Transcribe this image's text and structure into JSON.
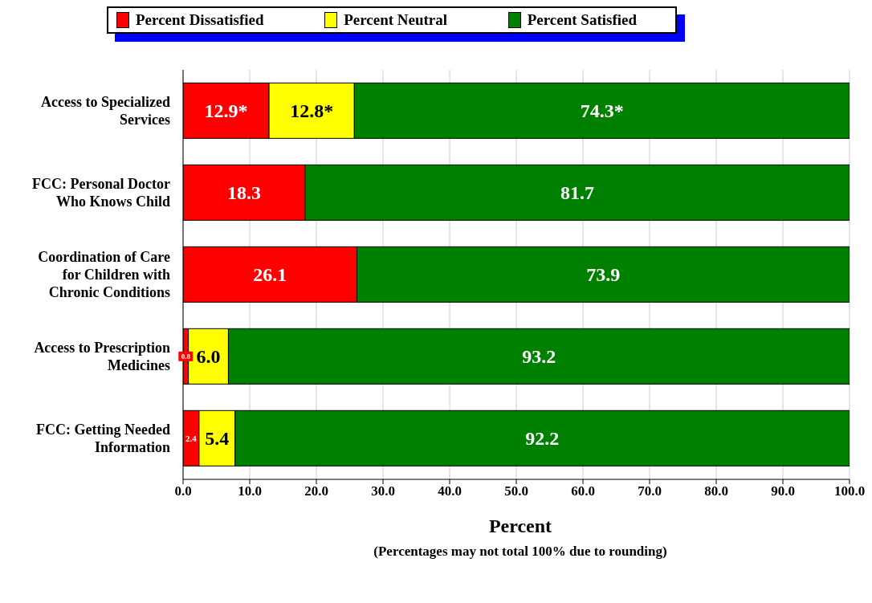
{
  "chart_data": {
    "type": "bar",
    "orientation": "horizontal",
    "stacked": true,
    "categories": [
      "Access to Specialized Services",
      "FCC: Personal Doctor Who Knows Child",
      "Coordination of Care for Children with Chronic Conditions",
      "Access to Prescription Medicines",
      "FCC: Getting Needed Information"
    ],
    "series": [
      {
        "name": "Percent Dissatisfied",
        "color": "#ff0000",
        "values": [
          12.9,
          18.3,
          26.1,
          0.8,
          2.4
        ],
        "value_labels": [
          "12.9*",
          "18.3",
          "26.1",
          "0.8",
          "2.4"
        ]
      },
      {
        "name": "Percent Neutral",
        "color": "#ffff00",
        "values": [
          12.8,
          null,
          null,
          6.0,
          5.4
        ],
        "value_labels": [
          "12.8*",
          null,
          null,
          "6.0",
          "5.4"
        ]
      },
      {
        "name": "Percent Satisfied",
        "color": "#008000",
        "values": [
          74.3,
          81.7,
          73.9,
          93.2,
          92.2
        ],
        "value_labels": [
          "74.3*",
          "81.7",
          "73.9",
          "93.2",
          "92.2"
        ]
      }
    ],
    "xlim": [
      0,
      100
    ],
    "xticks": [
      {
        "value": 0,
        "label": "0.0"
      },
      {
        "value": 10,
        "label": "10.0"
      },
      {
        "value": 20,
        "label": "20.0"
      },
      {
        "value": 30,
        "label": "30.0"
      },
      {
        "value": 40,
        "label": "40.0"
      },
      {
        "value": 50,
        "label": "50.0"
      },
      {
        "value": 60,
        "label": "60.0"
      },
      {
        "value": 70,
        "label": "70.0"
      },
      {
        "value": 80,
        "label": "80.0"
      },
      {
        "value": 90,
        "label": "90.0"
      },
      {
        "value": 100,
        "label": "100.0"
      }
    ],
    "xlabel": "Percent",
    "annotations": [
      "(Percentages may not total 100% due to rounding)"
    ],
    "grid": "x",
    "legend": "top"
  }
}
